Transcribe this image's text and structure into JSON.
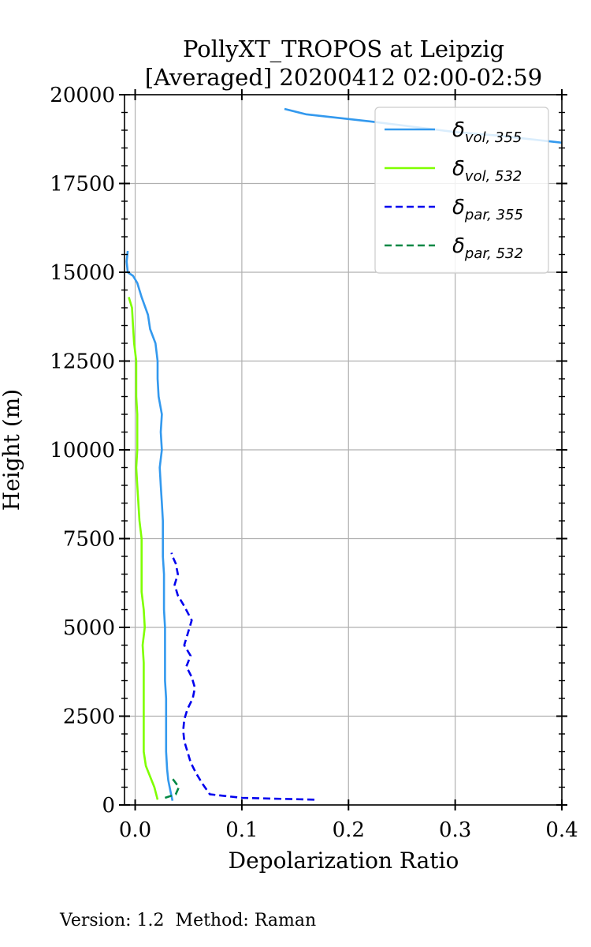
{
  "chart_data": {
    "type": "line",
    "title_line1": "PollyXT_TROPOS at Leipzig",
    "title_line2": "[Averaged] 20200412 02:00-02:59",
    "xlabel": "Depolarization Ratio",
    "ylabel": "Height (m)",
    "xlim": [
      -0.01,
      0.4
    ],
    "ylim": [
      0,
      20000
    ],
    "x_ticks": [
      0.0,
      0.1,
      0.2,
      0.3,
      0.4
    ],
    "x_tick_labels": [
      "0.0",
      "0.1",
      "0.2",
      "0.3",
      "0.4"
    ],
    "y_ticks": [
      0,
      2500,
      5000,
      7500,
      10000,
      12500,
      15000,
      17500,
      20000
    ],
    "y_tick_labels": [
      "0",
      "2500",
      "5000",
      "7500",
      "10000",
      "12500",
      "15000",
      "17500",
      "20000"
    ],
    "grid": true,
    "legend_position": "top-right",
    "series": [
      {
        "name_base": "δ",
        "name_sub": "vol, 355",
        "color": "#3399ee",
        "dash": "solid",
        "points": [
          [
            0.035,
            120
          ],
          [
            0.033,
            400
          ],
          [
            0.031,
            700
          ],
          [
            0.03,
            1000
          ],
          [
            0.029,
            1500
          ],
          [
            0.029,
            2000
          ],
          [
            0.029,
            2500
          ],
          [
            0.029,
            3000
          ],
          [
            0.028,
            3500
          ],
          [
            0.028,
            4000
          ],
          [
            0.028,
            4500
          ],
          [
            0.028,
            5000
          ],
          [
            0.027,
            5500
          ],
          [
            0.027,
            6000
          ],
          [
            0.027,
            6500
          ],
          [
            0.026,
            7000
          ],
          [
            0.026,
            7500
          ],
          [
            0.026,
            8000
          ],
          [
            0.025,
            8500
          ],
          [
            0.024,
            9000
          ],
          [
            0.023,
            9500
          ],
          [
            0.025,
            10000
          ],
          [
            0.024,
            10500
          ],
          [
            0.025,
            11000
          ],
          [
            0.022,
            11500
          ],
          [
            0.021,
            12000
          ],
          [
            0.021,
            12500
          ],
          [
            0.019,
            13000
          ],
          [
            0.014,
            13400
          ],
          [
            0.012,
            13800
          ],
          [
            0.006,
            14300
          ],
          [
            0.002,
            14700
          ],
          [
            -0.002,
            14900
          ],
          [
            -0.007,
            15000
          ],
          [
            -0.008,
            15300
          ],
          [
            -0.007,
            15600
          ]
        ]
      },
      {
        "name_base": "δ",
        "name_sub": "vol, 355",
        "color": "#3399ee",
        "dash": "solid",
        "points": [
          [
            0.14,
            19600
          ],
          [
            0.16,
            19450
          ],
          [
            0.19,
            19350
          ],
          [
            0.22,
            19250
          ],
          [
            0.26,
            19100
          ],
          [
            0.3,
            18950
          ],
          [
            0.34,
            18850
          ],
          [
            0.37,
            18750
          ],
          [
            0.4,
            18650
          ]
        ]
      },
      {
        "name_base": "δ",
        "name_sub": "vol, 532",
        "color": "#7fff00",
        "dash": "solid",
        "points": [
          [
            0.021,
            150
          ],
          [
            0.018,
            500
          ],
          [
            0.014,
            800
          ],
          [
            0.01,
            1100
          ],
          [
            0.008,
            1500
          ],
          [
            0.008,
            2000
          ],
          [
            0.008,
            2500
          ],
          [
            0.008,
            3000
          ],
          [
            0.008,
            3500
          ],
          [
            0.008,
            4000
          ],
          [
            0.007,
            4500
          ],
          [
            0.009,
            5000
          ],
          [
            0.008,
            5500
          ],
          [
            0.006,
            6000
          ],
          [
            0.006,
            6500
          ],
          [
            0.006,
            7000
          ],
          [
            0.006,
            7500
          ],
          [
            0.004,
            8000
          ],
          [
            0.003,
            8500
          ],
          [
            0.002,
            9000
          ],
          [
            0.001,
            9500
          ],
          [
            0.002,
            10000
          ],
          [
            0.002,
            10500
          ],
          [
            0.002,
            11000
          ],
          [
            0.001,
            11500
          ],
          [
            0.001,
            12000
          ],
          [
            0.001,
            12500
          ],
          [
            -0.001,
            13000
          ],
          [
            -0.002,
            13500
          ],
          [
            -0.003,
            14000
          ],
          [
            -0.006,
            14300
          ]
        ]
      },
      {
        "name_base": "δ",
        "name_sub": "par, 355",
        "color": "#0000ee",
        "dash": "dashed",
        "points": [
          [
            0.168,
            150
          ],
          [
            0.1,
            200
          ],
          [
            0.07,
            300
          ],
          [
            0.063,
            600
          ],
          [
            0.057,
            900
          ],
          [
            0.052,
            1200
          ],
          [
            0.049,
            1500
          ],
          [
            0.046,
            1800
          ],
          [
            0.045,
            2100
          ],
          [
            0.046,
            2400
          ],
          [
            0.049,
            2700
          ],
          [
            0.054,
            3000
          ],
          [
            0.056,
            3300
          ],
          [
            0.053,
            3600
          ],
          [
            0.048,
            3900
          ],
          [
            0.052,
            4200
          ],
          [
            0.046,
            4500
          ],
          [
            0.049,
            4800
          ],
          [
            0.053,
            5200
          ],
          [
            0.046,
            5600
          ],
          [
            0.04,
            5900
          ],
          [
            0.037,
            6200
          ],
          [
            0.04,
            6500
          ],
          [
            0.038,
            6800
          ],
          [
            0.035,
            7000
          ],
          [
            0.034,
            7100
          ]
        ]
      },
      {
        "name_base": "δ",
        "name_sub": "par, 532",
        "color": "#008844",
        "dash": "dashed",
        "points": [
          [
            0.028,
            200
          ],
          [
            0.038,
            300
          ],
          [
            0.041,
            500
          ],
          [
            0.036,
            700
          ],
          [
            0.033,
            800
          ]
        ]
      }
    ],
    "legend": [
      {
        "base": "δ",
        "sub": "vol, 355",
        "color": "#3399ee",
        "dash": "solid"
      },
      {
        "base": "δ",
        "sub": "vol, 532",
        "color": "#7fff00",
        "dash": "solid"
      },
      {
        "base": "δ",
        "sub": "par, 355",
        "color": "#0000ee",
        "dash": "dashed"
      },
      {
        "base": "δ",
        "sub": "par, 532",
        "color": "#008844",
        "dash": "dashed"
      }
    ]
  },
  "footer": {
    "version_label": "Version: 1.2",
    "method_label": "Method: Raman"
  }
}
